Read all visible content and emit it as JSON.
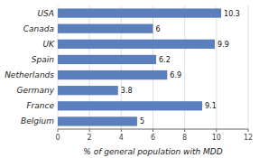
{
  "chart_data": {
    "type": "bar",
    "orientation": "horizontal",
    "categories": [
      "USA",
      "Canada",
      "UK",
      "Spain",
      "Netherlands",
      "Germany",
      "France",
      "Belgium"
    ],
    "values": [
      10.3,
      6,
      9.9,
      6.2,
      6.9,
      3.8,
      9.1,
      5
    ],
    "color": "#5b7fbc",
    "xlabel": "% of general population with MDD",
    "xlim": [
      0,
      12
    ],
    "xticks": [
      0,
      2,
      4,
      6,
      8,
      10,
      12
    ],
    "grid": true,
    "data_labels": true
  }
}
